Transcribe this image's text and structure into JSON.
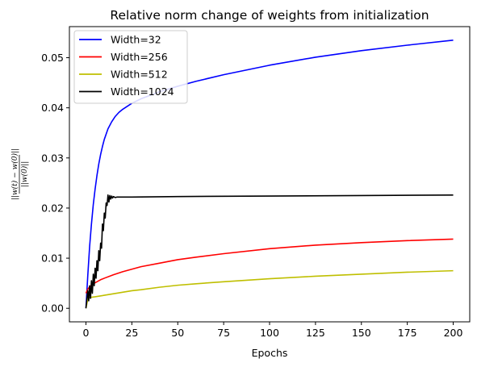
{
  "chart_data": {
    "type": "line",
    "title": "Relative norm change of weights from initialization",
    "xlabel": "Epochs",
    "ylabel_numerator": "||w(t) − w(0)||",
    "ylabel_denominator": "||w(0)||",
    "xlim": [
      -9,
      209
    ],
    "ylim": [
      -0.0027,
      0.0562
    ],
    "xticks": [
      0,
      25,
      50,
      75,
      100,
      125,
      150,
      175,
      200
    ],
    "yticks": [
      0.0,
      0.01,
      0.02,
      0.03,
      0.04,
      0.05
    ],
    "ytick_labels": [
      "0.00",
      "0.01",
      "0.02",
      "0.03",
      "0.04",
      "0.05"
    ],
    "legend_position": "top-left",
    "grid": false,
    "series": [
      {
        "name": "Width=32",
        "color": "#0000ff",
        "x": [
          0,
          1,
          2,
          3,
          4,
          5,
          6,
          7,
          8,
          9,
          10,
          12,
          14,
          16,
          18,
          20,
          25,
          30,
          40,
          50,
          60,
          75,
          100,
          125,
          150,
          175,
          200
        ],
        "y": [
          0.0,
          0.0065,
          0.0123,
          0.0168,
          0.0207,
          0.0238,
          0.0265,
          0.0288,
          0.0307,
          0.0323,
          0.0337,
          0.0358,
          0.0372,
          0.0383,
          0.0391,
          0.0397,
          0.0409,
          0.0418,
          0.0432,
          0.0443,
          0.0453,
          0.0466,
          0.0485,
          0.0501,
          0.0514,
          0.0525,
          0.0535
        ]
      },
      {
        "name": "Width=256",
        "color": "#ff0000",
        "x": [
          0,
          1,
          2,
          3,
          5,
          8,
          10,
          15,
          20,
          25,
          30,
          40,
          50,
          60,
          75,
          100,
          125,
          150,
          175,
          200
        ],
        "y": [
          0.003,
          0.0038,
          0.0043,
          0.0046,
          0.0051,
          0.0057,
          0.006,
          0.0067,
          0.0073,
          0.0078,
          0.0083,
          0.009,
          0.0097,
          0.0102,
          0.0109,
          0.0119,
          0.0126,
          0.0131,
          0.0135,
          0.0138
        ]
      },
      {
        "name": "Width=512",
        "color": "#bfbf00",
        "x": [
          0,
          1,
          2,
          3,
          5,
          10,
          15,
          20,
          25,
          30,
          40,
          50,
          60,
          75,
          100,
          125,
          150,
          175,
          200
        ],
        "y": [
          0.0,
          0.0018,
          0.0021,
          0.0022,
          0.0023,
          0.0026,
          0.0029,
          0.0032,
          0.0035,
          0.0037,
          0.0042,
          0.0046,
          0.0049,
          0.0053,
          0.0059,
          0.0064,
          0.0068,
          0.0072,
          0.0075
        ]
      },
      {
        "name": "Width=1024",
        "color": "#000000",
        "x": [
          0,
          1,
          1.5,
          2,
          2.5,
          3,
          3.5,
          4,
          4.5,
          5,
          5.5,
          6,
          6.5,
          7,
          7.5,
          8,
          8.5,
          9,
          9.5,
          10,
          10.5,
          11,
          11.5,
          12,
          12.5,
          13,
          13.5,
          14,
          14.5,
          15,
          16,
          17,
          18,
          19,
          20,
          25,
          50,
          100,
          150,
          200
        ],
        "y": [
          0.0,
          0.0035,
          0.0015,
          0.0045,
          0.002,
          0.0055,
          0.003,
          0.0068,
          0.0045,
          0.008,
          0.006,
          0.0095,
          0.0075,
          0.0115,
          0.0095,
          0.013,
          0.012,
          0.0168,
          0.0155,
          0.019,
          0.018,
          0.021,
          0.0205,
          0.0226,
          0.0212,
          0.0225,
          0.0218,
          0.0224,
          0.022,
          0.0223,
          0.0221,
          0.0222,
          0.0222,
          0.0222,
          0.0222,
          0.0222,
          0.0223,
          0.0224,
          0.0225,
          0.0226
        ]
      }
    ]
  }
}
